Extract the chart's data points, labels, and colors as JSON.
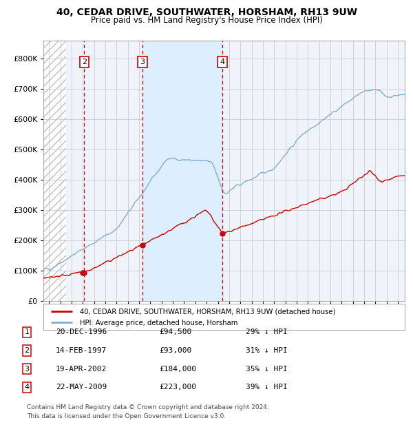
{
  "title": "40, CEDAR DRIVE, SOUTHWATER, HORSHAM, RH13 9UW",
  "subtitle": "Price paid vs. HM Land Registry's House Price Index (HPI)",
  "property_label": "40, CEDAR DRIVE, SOUTHWATER, HORSHAM, RH13 9UW (detached house)",
  "hpi_label": "HPI: Average price, detached house, Horsham",
  "legend_entries": [
    {
      "num": 1,
      "date": "20-DEC-1996",
      "price": "£94,500",
      "hpi_pct": "29% ↓ HPI"
    },
    {
      "num": 2,
      "date": "14-FEB-1997",
      "price": "£93,000",
      "hpi_pct": "31% ↓ HPI"
    },
    {
      "num": 3,
      "date": "19-APR-2002",
      "price": "£184,000",
      "hpi_pct": "35% ↓ HPI"
    },
    {
      "num": 4,
      "date": "22-MAY-2009",
      "price": "£223,000",
      "hpi_pct": "39% ↓ HPI"
    }
  ],
  "sale_dates": [
    1996.97,
    1997.12,
    2002.3,
    2009.39
  ],
  "sale_prices": [
    94500,
    93000,
    184000,
    223000
  ],
  "vline_dates": [
    1997.12,
    2002.3,
    2009.39
  ],
  "shaded_span": [
    2002.3,
    2009.39
  ],
  "hatch_end": 1995.5,
  "ylim": [
    0,
    860000
  ],
  "yticks": [
    0,
    100000,
    200000,
    300000,
    400000,
    500000,
    600000,
    700000,
    800000
  ],
  "ytick_labels": [
    "£0",
    "£100K",
    "£200K",
    "£300K",
    "£400K",
    "£500K",
    "£600K",
    "£700K",
    "£800K"
  ],
  "xlim_start": 1993.5,
  "xlim_end": 2025.6,
  "property_color": "#cc0000",
  "hpi_color": "#7eaed4",
  "vline_color": "#cc0000",
  "shade_color": "#ddeeff",
  "grid_color": "#cccccc",
  "background_color": "#ffffff",
  "plot_bg_color": "#f0f4fa",
  "footnote1": "Contains HM Land Registry data © Crown copyright and database right 2024.",
  "footnote2": "This data is licensed under the Open Government Licence v3.0."
}
